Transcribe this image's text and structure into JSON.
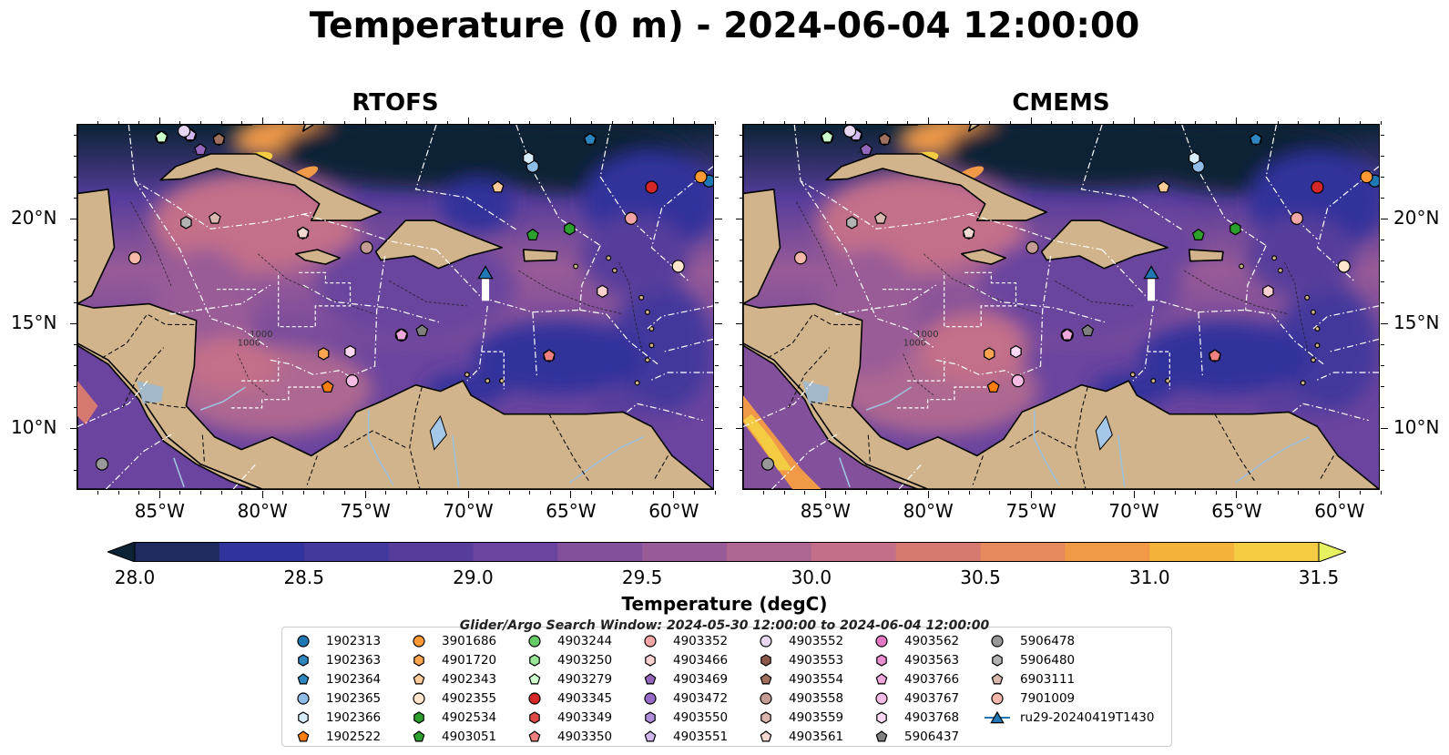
{
  "title": "Temperature (0 m) - 2024-06-04 12:00:00",
  "panels": [
    {
      "id": "left",
      "title": "RTOFS"
    },
    {
      "id": "right",
      "title": "CMEMS"
    }
  ],
  "map": {
    "lon_range": [
      -89,
      -58
    ],
    "lat_range": [
      7,
      24.5
    ],
    "lon_ticks": [
      "85°W",
      "80°W",
      "75°W",
      "70°W",
      "65°W",
      "60°W"
    ],
    "lat_ticks_left": [
      "20°N",
      "15°N",
      "10°N"
    ],
    "lat_ticks_right": [
      "20°N",
      "15°N",
      "10°N"
    ],
    "land_color": "#d2b48c",
    "lake_color": "#a6c8e8",
    "contour_labels": [
      "1000",
      "1000"
    ]
  },
  "colorbar": {
    "label": "Temperature (degC)",
    "min": 28.0,
    "max": 31.5,
    "tick_labels": [
      "28.0",
      "28.5",
      "29.0",
      "29.5",
      "30.0",
      "30.5",
      "31.0",
      "31.5"
    ],
    "colors": [
      "#0c2335",
      "#1f2b5e",
      "#30339b",
      "#43389c",
      "#563c9b",
      "#6a449e",
      "#83509c",
      "#995b97",
      "#ad6791",
      "#c36f89",
      "#d67a71",
      "#e68a5d",
      "#f09a48",
      "#f5b23b",
      "#f4cc44",
      "#e7f260"
    ]
  },
  "search_window": "Glider/Argo Search Window: 2024-05-30 12:00:00 to 2024-06-04 12:00:00",
  "chart_data": {
    "type": "map",
    "variable": "Temperature (0 m)",
    "time": "2024-06-04 12:00:00",
    "models": [
      "RTOFS",
      "CMEMS"
    ],
    "color_range": [
      28.0,
      31.5
    ],
    "units": "degC",
    "floats": [
      {
        "id": "1902313",
        "marker": "circle",
        "color": "#1f77b4",
        "lon": -58.2,
        "lat": 21.8
      },
      {
        "id": "1902363",
        "marker": "hexagon",
        "color": "#2e86c1",
        "lon": -64.0,
        "lat": 23.8
      },
      {
        "id": "1902364",
        "marker": "pentagon",
        "color": "#2e86c1",
        "lon": -64.0,
        "lat": 23.8
      },
      {
        "id": "1902365",
        "marker": "circle",
        "color": "#8fbde8",
        "lon": -66.8,
        "lat": 22.5
      },
      {
        "id": "1902366",
        "marker": "hexagon",
        "color": "#d6ecfb",
        "lon": -67.0,
        "lat": 22.9
      },
      {
        "id": "1902522",
        "marker": "pentagon",
        "color": "#ff7f0e",
        "lon": -76.8,
        "lat": 11.9
      },
      {
        "id": "3901686",
        "marker": "circle",
        "color": "#ff9933",
        "lon": -58.6,
        "lat": 22.0
      },
      {
        "id": "4901720",
        "marker": "hexagon",
        "color": "#ffa54f",
        "lon": -77.0,
        "lat": 13.5
      },
      {
        "id": "4902343",
        "marker": "pentagon",
        "color": "#ffcc99",
        "lon": -68.5,
        "lat": 21.5
      },
      {
        "id": "4902355",
        "marker": "circle",
        "color": "#ffe5cc",
        "lon": -59.7,
        "lat": 17.7
      },
      {
        "id": "4902534",
        "marker": "hexagon",
        "color": "#2ca02c",
        "lon": -65.0,
        "lat": 19.5
      },
      {
        "id": "4903051",
        "marker": "pentagon",
        "color": "#2ca02c",
        "lon": -66.8,
        "lat": 19.2
      },
      {
        "id": "4903244",
        "marker": "circle",
        "color": "#66cc66",
        "lon": -84.9,
        "lat": 23.9
      },
      {
        "id": "4903250",
        "marker": "hexagon",
        "color": "#99e699",
        "lon": -84.9,
        "lat": 23.9
      },
      {
        "id": "4903279",
        "marker": "pentagon",
        "color": "#ccffcc",
        "lon": -84.9,
        "lat": 23.9
      },
      {
        "id": "4903345",
        "marker": "circle",
        "color": "#d62728",
        "lon": -61.0,
        "lat": 21.5
      },
      {
        "id": "4903349",
        "marker": "hexagon",
        "color": "#e04848",
        "lon": -66.0,
        "lat": 13.4
      },
      {
        "id": "4903350",
        "marker": "pentagon",
        "color": "#f08080",
        "lon": -66.0,
        "lat": 13.4
      },
      {
        "id": "4903352",
        "marker": "circle",
        "color": "#f4a6a6",
        "lon": -62.0,
        "lat": 20.0
      },
      {
        "id": "4903466",
        "marker": "hexagon",
        "color": "#ffd1d1",
        "lon": -63.4,
        "lat": 16.5
      },
      {
        "id": "4903469",
        "marker": "pentagon",
        "color": "#9467bd",
        "lon": -83.0,
        "lat": 23.3
      },
      {
        "id": "4903472",
        "marker": "circle",
        "color": "#9a6acb",
        "lon": -83.5,
        "lat": 24.0
      },
      {
        "id": "4903550",
        "marker": "hexagon",
        "color": "#b28ddb",
        "lon": -83.5,
        "lat": 24.0
      },
      {
        "id": "4903551",
        "marker": "pentagon",
        "color": "#d0b8ee",
        "lon": -83.5,
        "lat": 24.0
      },
      {
        "id": "4903552",
        "marker": "circle",
        "color": "#e8d8f6",
        "lon": -83.8,
        "lat": 24.2
      },
      {
        "id": "4903553",
        "marker": "hexagon",
        "color": "#8c564b",
        "lon": -82.1,
        "lat": 23.8
      },
      {
        "id": "4903554",
        "marker": "pentagon",
        "color": "#a0705f",
        "lon": -82.1,
        "lat": 23.8
      },
      {
        "id": "4903558",
        "marker": "circle",
        "color": "#c49c94",
        "lon": -74.9,
        "lat": 18.6
      },
      {
        "id": "4903559",
        "marker": "hexagon",
        "color": "#dbb6ad",
        "lon": -78.0,
        "lat": 19.3
      },
      {
        "id": "4903561",
        "marker": "pentagon",
        "color": "#f2d9d2",
        "lon": -78.0,
        "lat": 19.3
      },
      {
        "id": "4903562",
        "marker": "circle",
        "color": "#e377c2",
        "lon": -73.2,
        "lat": 14.4
      },
      {
        "id": "4903563",
        "marker": "hexagon",
        "color": "#e88fcf",
        "lon": -73.2,
        "lat": 14.4
      },
      {
        "id": "4903766",
        "marker": "pentagon",
        "color": "#f0a8dc",
        "lon": -73.2,
        "lat": 14.4
      },
      {
        "id": "4903767",
        "marker": "circle",
        "color": "#f6bce6",
        "lon": -75.6,
        "lat": 12.2
      },
      {
        "id": "4903768",
        "marker": "hexagon",
        "color": "#fcd8f2",
        "lon": -75.7,
        "lat": 13.6
      },
      {
        "id": "5906437",
        "marker": "pentagon",
        "color": "#7f7f7f",
        "lon": -72.2,
        "lat": 14.6
      },
      {
        "id": "5906478",
        "marker": "circle",
        "color": "#999999",
        "lon": -87.8,
        "lat": 8.2
      },
      {
        "id": "5906480",
        "marker": "hexagon",
        "color": "#b3b3b3",
        "lon": -83.7,
        "lat": 19.8
      },
      {
        "id": "6903111",
        "marker": "pentagon",
        "color": "#d9b8b0",
        "lon": -82.3,
        "lat": 20.0
      },
      {
        "id": "7901009",
        "marker": "circle",
        "color": "#f4b8a8",
        "lon": -86.2,
        "lat": 18.1
      }
    ],
    "gliders": [
      {
        "id": "ru29-20240419T1430",
        "marker": "triangle",
        "color": "#1f77b4",
        "lon": -69.1,
        "lat": 17.4
      }
    ]
  },
  "legend": {
    "columns": [
      [
        {
          "id": "1902313",
          "marker": "circle",
          "color": "#1f77b4"
        },
        {
          "id": "1902363",
          "marker": "hexagon",
          "color": "#2e86c1"
        },
        {
          "id": "1902364",
          "marker": "pentagon",
          "color": "#2e86c1"
        },
        {
          "id": "1902365",
          "marker": "circle",
          "color": "#8fbde8"
        },
        {
          "id": "1902366",
          "marker": "hexagon",
          "color": "#d6ecfb"
        },
        {
          "id": "1902522",
          "marker": "pentagon",
          "color": "#ff7f0e"
        }
      ],
      [
        {
          "id": "3901686",
          "marker": "circle",
          "color": "#ff9933"
        },
        {
          "id": "4901720",
          "marker": "hexagon",
          "color": "#ffa54f"
        },
        {
          "id": "4902343",
          "marker": "pentagon",
          "color": "#ffcc99"
        },
        {
          "id": "4902355",
          "marker": "circle",
          "color": "#ffe5cc"
        },
        {
          "id": "4902534",
          "marker": "hexagon",
          "color": "#2ca02c"
        },
        {
          "id": "4903051",
          "marker": "pentagon",
          "color": "#2ca02c"
        }
      ],
      [
        {
          "id": "4903244",
          "marker": "circle",
          "color": "#66cc66"
        },
        {
          "id": "4903250",
          "marker": "hexagon",
          "color": "#99e699"
        },
        {
          "id": "4903279",
          "marker": "pentagon",
          "color": "#ccffcc"
        },
        {
          "id": "4903345",
          "marker": "circle",
          "color": "#d62728"
        },
        {
          "id": "4903349",
          "marker": "hexagon",
          "color": "#e04848"
        },
        {
          "id": "4903350",
          "marker": "pentagon",
          "color": "#f08080"
        }
      ],
      [
        {
          "id": "4903352",
          "marker": "circle",
          "color": "#f4a6a6"
        },
        {
          "id": "4903466",
          "marker": "hexagon",
          "color": "#ffd1d1"
        },
        {
          "id": "4903469",
          "marker": "pentagon",
          "color": "#9467bd"
        },
        {
          "id": "4903472",
          "marker": "circle",
          "color": "#9a6acb"
        },
        {
          "id": "4903550",
          "marker": "hexagon",
          "color": "#b28ddb"
        },
        {
          "id": "4903551",
          "marker": "pentagon",
          "color": "#d0b8ee"
        }
      ],
      [
        {
          "id": "4903552",
          "marker": "circle",
          "color": "#e8d8f6"
        },
        {
          "id": "4903553",
          "marker": "hexagon",
          "color": "#8c564b"
        },
        {
          "id": "4903554",
          "marker": "pentagon",
          "color": "#a0705f"
        },
        {
          "id": "4903558",
          "marker": "circle",
          "color": "#c49c94"
        },
        {
          "id": "4903559",
          "marker": "hexagon",
          "color": "#dbb6ad"
        },
        {
          "id": "4903561",
          "marker": "pentagon",
          "color": "#f2d9d2"
        }
      ],
      [
        {
          "id": "4903562",
          "marker": "circle",
          "color": "#e377c2"
        },
        {
          "id": "4903563",
          "marker": "hexagon",
          "color": "#e88fcf"
        },
        {
          "id": "4903766",
          "marker": "pentagon",
          "color": "#f0a8dc"
        },
        {
          "id": "4903767",
          "marker": "circle",
          "color": "#f6bce6"
        },
        {
          "id": "4903768",
          "marker": "hexagon",
          "color": "#fcd8f2"
        },
        {
          "id": "5906437",
          "marker": "pentagon",
          "color": "#7f7f7f"
        }
      ],
      [
        {
          "id": "5906478",
          "marker": "circle",
          "color": "#999999"
        },
        {
          "id": "5906480",
          "marker": "hexagon",
          "color": "#b3b3b3"
        },
        {
          "id": "6903111",
          "marker": "pentagon",
          "color": "#d9b8b0"
        },
        {
          "id": "7901009",
          "marker": "circle",
          "color": "#f4b8a8"
        },
        {
          "id": "ru29-20240419T1430",
          "marker": "triangle-line",
          "color": "#1f77b4"
        }
      ]
    ]
  }
}
